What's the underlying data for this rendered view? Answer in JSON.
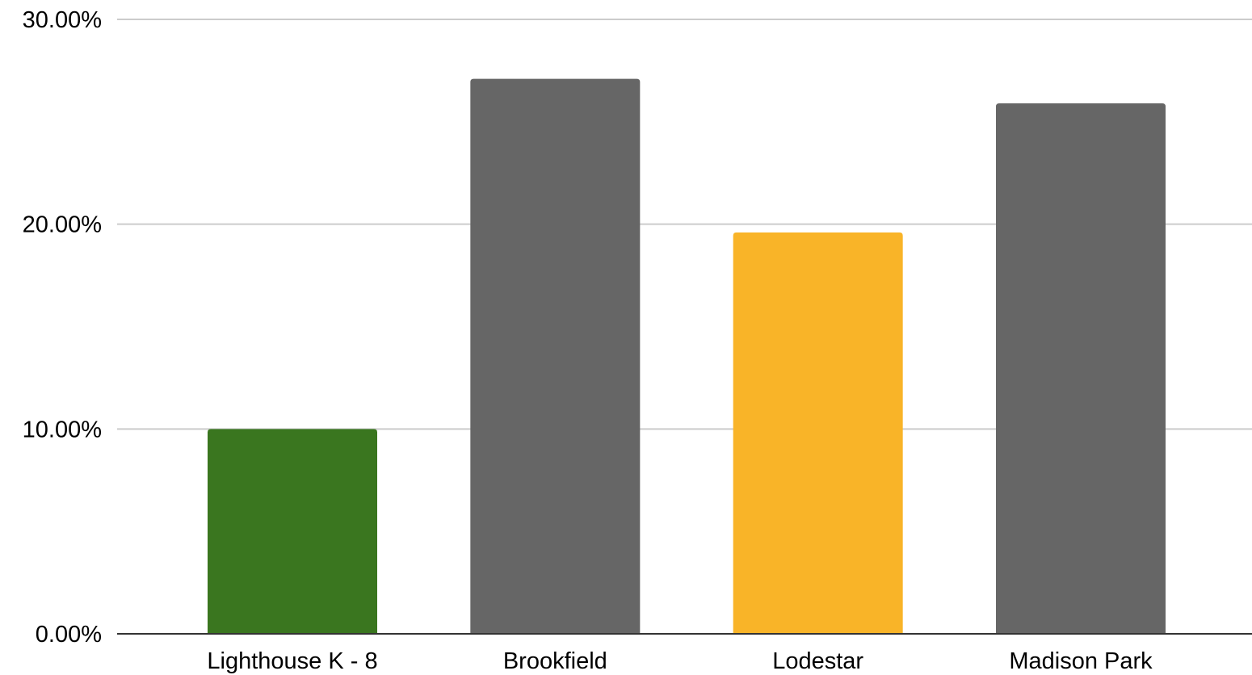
{
  "chart_data": {
    "type": "bar",
    "title": "",
    "xlabel": "",
    "ylabel": "",
    "categories": [
      "Lighthouse K - 8",
      "Brookfield",
      "Lodestar",
      "Madison Park"
    ],
    "values": [
      10.0,
      27.1,
      19.6,
      25.9
    ],
    "value_format": "percent",
    "bar_colors": [
      "#3a761f",
      "#666666",
      "#f9b428",
      "#666666"
    ],
    "ylim": [
      0,
      30
    ],
    "yticks": [
      0,
      10,
      20,
      30
    ],
    "ytick_labels": [
      "0.00%",
      "10.00%",
      "20.00%",
      "30.00%"
    ],
    "grid": true,
    "legend": "none",
    "colors": {
      "gridline": "#cccccc",
      "baseline": "#333333",
      "text": "#000000",
      "background": "#ffffff"
    }
  }
}
